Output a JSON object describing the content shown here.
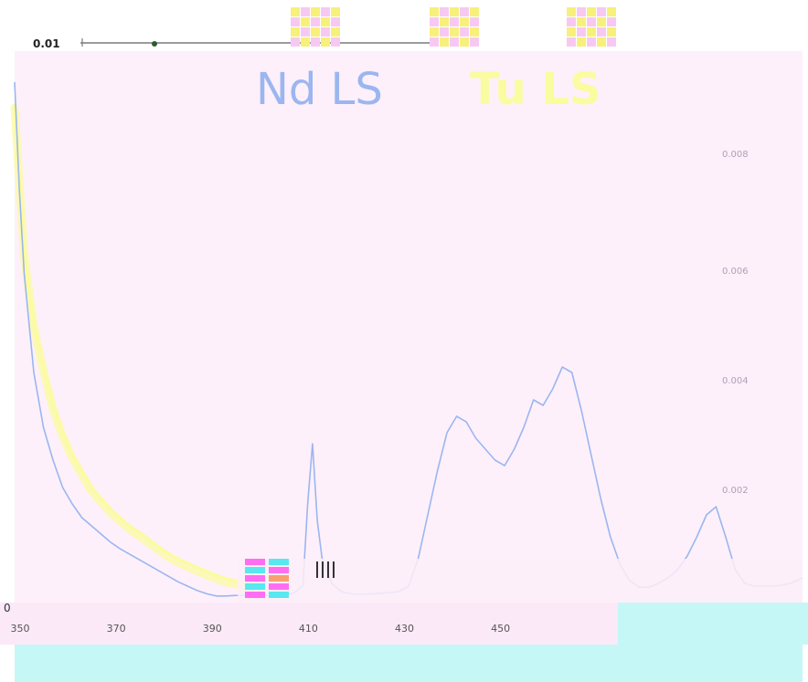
{
  "colors": {
    "background": "#fdf0fa",
    "nd_series": "#9bb6f0",
    "tu_series": "#fbfba0",
    "cyan_block": "#c6f7f7",
    "axis_text": "#555555",
    "right_tick_text": "#b0a0b8"
  },
  "top_scale": {
    "label": "0.01"
  },
  "legend": {
    "nd_label": "Nd LS",
    "tu_label": "Tu LS"
  },
  "chart_data": {
    "type": "line",
    "title": "",
    "xlabel": "",
    "ylabel": "",
    "x_tick_labels": [
      "350",
      "370",
      "390",
      "410",
      "430",
      "450"
    ],
    "y_tick_labels_right": [
      "0.008",
      "0.006",
      "0.004",
      "0.002"
    ],
    "left_axis_label": "0",
    "xlim": [
      350,
      514
    ],
    "ylim": [
      0,
      0.01
    ],
    "grid": false,
    "series": [
      {
        "name": "Nd LS",
        "color": "#9bb6f0",
        "x": [
          350,
          351,
          352,
          354,
          356,
          358,
          360,
          362,
          364,
          366,
          368,
          370,
          372,
          374,
          376,
          378,
          380,
          382,
          384,
          386,
          388,
          390,
          392,
          394,
          396,
          398,
          400,
          402,
          404,
          406,
          408,
          410,
          411,
          412,
          413,
          414,
          416,
          418,
          420,
          422,
          424,
          426,
          428,
          430,
          432,
          434,
          436,
          438,
          440,
          442,
          444,
          446,
          448,
          450,
          452,
          454,
          456,
          458,
          460,
          462,
          464,
          466,
          468,
          470,
          472,
          474,
          476,
          478,
          480,
          482,
          484,
          486,
          488,
          490,
          492,
          494,
          496,
          498,
          500,
          502,
          504,
          506,
          508,
          510,
          512,
          514
        ],
        "y": [
          0.0095,
          0.0075,
          0.006,
          0.0042,
          0.0032,
          0.0026,
          0.0021,
          0.0018,
          0.00155,
          0.0014,
          0.00125,
          0.0011,
          0.00098,
          0.00088,
          0.00078,
          0.00068,
          0.00058,
          0.00048,
          0.00038,
          0.0003,
          0.00022,
          0.00016,
          0.00012,
          0.00012,
          0.00013,
          0.00013,
          0.00012,
          0.00013,
          0.00012,
          0.00014,
          0.00017,
          0.0003,
          0.0018,
          0.0029,
          0.0015,
          0.0008,
          0.00035,
          0.0002,
          0.00016,
          0.00015,
          0.00016,
          0.00017,
          0.00018,
          0.0002,
          0.0003,
          0.0008,
          0.0016,
          0.0024,
          0.0031,
          0.0034,
          0.0033,
          0.003,
          0.0028,
          0.0026,
          0.0025,
          0.0028,
          0.0032,
          0.0037,
          0.0036,
          0.0039,
          0.0043,
          0.0042,
          0.0035,
          0.0027,
          0.0019,
          0.0012,
          0.0007,
          0.0004,
          0.00028,
          0.00028,
          0.00035,
          0.00045,
          0.0006,
          0.00085,
          0.0012,
          0.0016,
          0.00175,
          0.0012,
          0.0006,
          0.00035,
          0.0003,
          0.0003,
          0.0003,
          0.00032,
          0.00037,
          0.00045
        ]
      },
      {
        "name": "Tu LS",
        "color": "#fbfba0",
        "x": [
          350,
          351,
          352,
          354,
          356,
          358,
          360,
          362,
          364,
          366,
          368,
          370,
          372,
          374,
          376,
          378,
          380,
          382,
          384,
          386,
          388,
          390,
          392,
          394,
          396,
          398,
          400,
          402
        ],
        "y": [
          0.0091,
          0.0077,
          0.0064,
          0.0051,
          0.0043,
          0.0036,
          0.0031,
          0.0027,
          0.0024,
          0.0021,
          0.0019,
          0.0017,
          0.00155,
          0.0014,
          0.00128,
          0.00115,
          0.00102,
          0.0009,
          0.0008,
          0.00072,
          0.00064,
          0.00057,
          0.0005,
          0.00044,
          0.0004,
          0.00036,
          0.00033,
          0.0003
        ]
      }
    ]
  }
}
